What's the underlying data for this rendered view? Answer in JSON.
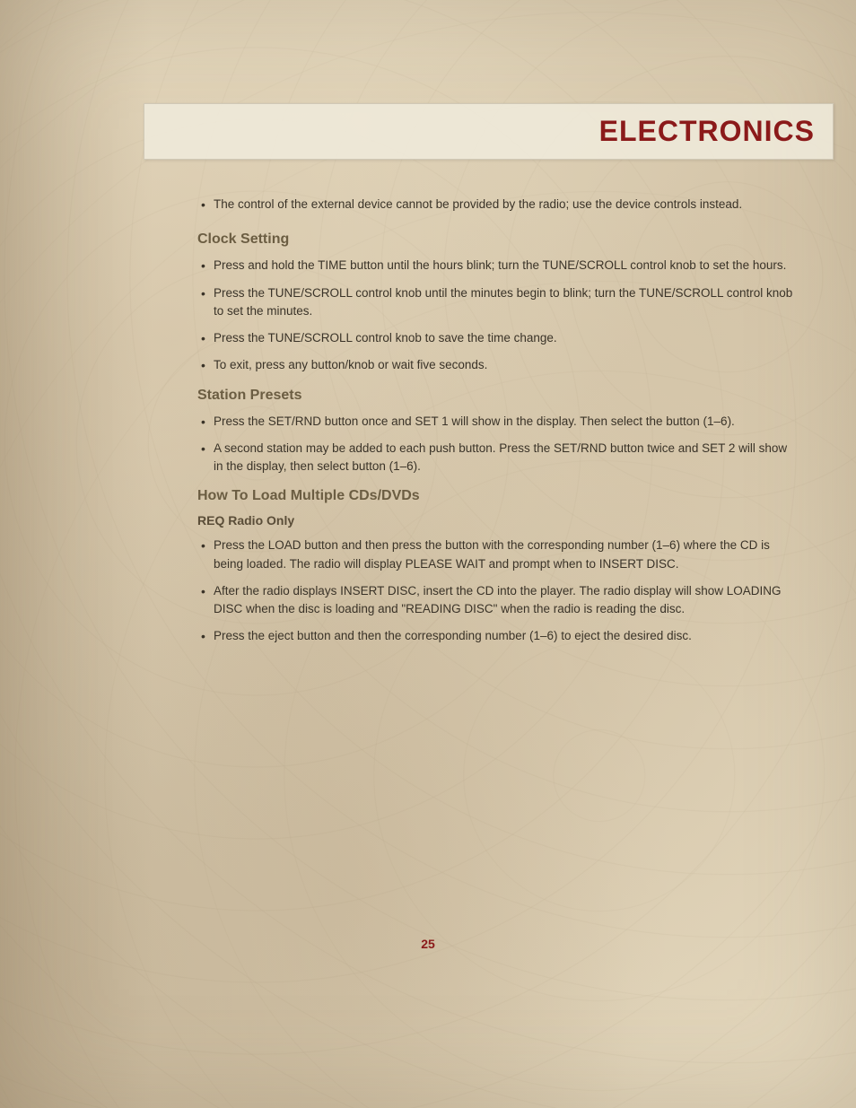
{
  "header": {
    "title": "ELECTRONICS"
  },
  "colors": {
    "heading_red": "#8b1a1a",
    "section_brown": "#6b5d42",
    "text_dark": "#3a3328",
    "background": "#e8dcc2",
    "banner_bg": "rgba(240, 235, 220, 0.85)"
  },
  "typography": {
    "header_fontsize": 32,
    "section_fontsize": 16,
    "subsection_fontsize": 14,
    "body_fontsize": 13.5
  },
  "intro": {
    "bullet": "The control of the external device cannot be provided by the radio; use the device controls instead."
  },
  "sections": [
    {
      "heading": "Clock Setting",
      "bullets": [
        "Press and hold the TIME button until the hours blink; turn the TUNE/SCROLL control knob to set the hours.",
        "Press the TUNE/SCROLL control knob until the minutes begin to blink; turn the TUNE/SCROLL control knob to set the minutes.",
        "Press the TUNE/SCROLL control knob to save the time change.",
        "To exit, press any button/knob or wait five seconds."
      ]
    },
    {
      "heading": "Station Presets",
      "bullets": [
        "Press the SET/RND button once and SET 1 will show in the display. Then select the button (1–6).",
        "A second station may be added to each push button. Press the SET/RND button twice and SET 2 will show in the display, then select button (1–6)."
      ]
    },
    {
      "heading": "How To Load Multiple CDs/DVDs",
      "subsection": "REQ Radio Only",
      "bullets": [
        "Press the LOAD button and then press the button with the corresponding number (1–6) where the CD is being loaded. The radio will display PLEASE WAIT and prompt when to INSERT DISC.",
        "After the radio displays INSERT DISC, insert the CD into the player. The radio display will show LOADING DISC when the disc is loading and \"READING DISC\" when the radio is reading the disc.",
        "Press the eject button and then the corresponding number (1–6) to eject the desired disc."
      ]
    }
  ],
  "page_number": "25"
}
